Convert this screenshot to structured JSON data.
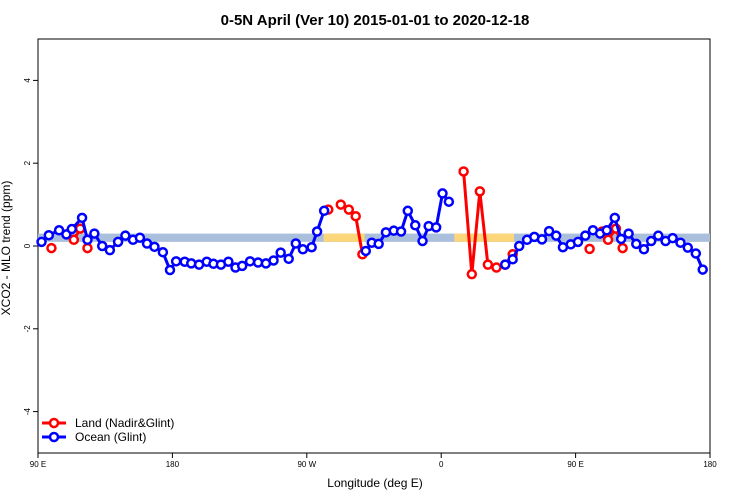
{
  "chart_data": {
    "type": "line",
    "title": "0-5N April (Ver 10)   2015-01-01 to 2020-12-18",
    "xlabel": "Longitude (deg E)",
    "ylabel": "XCO2 - MLO trend (ppm)",
    "xlim": [
      0,
      360
    ],
    "ylim": [
      -5,
      5
    ],
    "xticks": [
      {
        "v": 0,
        "label": "90 E"
      },
      {
        "v": 72,
        "label": "180"
      },
      {
        "v": 144,
        "label": "90 W"
      },
      {
        "v": 216,
        "label": "0"
      },
      {
        "v": 288,
        "label": "90 E"
      },
      {
        "v": 360,
        "label": "180"
      }
    ],
    "yticks": [
      -4,
      -2,
      0,
      2,
      4
    ],
    "grid": false,
    "legend_position": "bottom-left",
    "band": {
      "y_low": 0.1,
      "y_high": 0.3,
      "color": "#aabfdb",
      "land_color": "#fbd67a",
      "land_ranges": [
        [
          153,
          175
        ],
        [
          223,
          255
        ]
      ]
    },
    "series": [
      {
        "name": "Land (Nadir&Glint)",
        "color": "#ff0000",
        "segments": [
          [
            [
              7.2,
              -0.05
            ]
          ],
          [
            [
              19.2,
              0.15
            ],
            [
              22.6,
              0.42
            ]
          ],
          [
            [
              26.5,
              -0.05
            ]
          ],
          [
            [
              155.5,
              0.88
            ]
          ],
          [
            [
              162.2,
              1.0
            ],
            [
              166.5,
              0.88
            ],
            [
              170.2,
              0.72
            ],
            [
              173.8,
              -0.2
            ]
          ],
          [
            [
              228.0,
              1.8
            ],
            [
              232.4,
              -0.68
            ],
            [
              236.7,
              1.32
            ],
            [
              241.0,
              -0.45
            ],
            [
              245.6,
              -0.52
            ],
            [
              250.3,
              -0.45
            ],
            [
              254.3,
              -0.2
            ]
          ],
          [
            [
              295.5,
              -0.07
            ]
          ],
          [
            [
              302.3,
              0.35
            ]
          ],
          [
            [
              305.4,
              0.15
            ],
            [
              309.6,
              0.42
            ],
            [
              313.2,
              -0.05
            ]
          ]
        ]
      },
      {
        "name": "Ocean (Glint)",
        "color": "#0000ff",
        "segments": [
          [
            [
              1.9,
              0.1
            ],
            [
              5.8,
              0.26
            ],
            [
              11.3,
              0.38
            ],
            [
              15.2,
              0.28
            ],
            [
              18.1,
              0.41
            ],
            [
              23.6,
              0.68
            ],
            [
              26.5,
              0.15
            ],
            [
              30.2,
              0.3
            ],
            [
              34.4,
              0.0
            ],
            [
              38.5,
              -0.1
            ],
            [
              42.9,
              0.1
            ],
            [
              46.8,
              0.25
            ],
            [
              50.9,
              0.15
            ],
            [
              54.6,
              0.2
            ],
            [
              58.4,
              0.06
            ],
            [
              62.4,
              -0.02
            ],
            [
              66.9,
              -0.15
            ],
            [
              70.7,
              -0.58
            ],
            [
              74.0,
              -0.37
            ],
            [
              78.6,
              -0.38
            ],
            [
              82.1,
              -0.42
            ],
            [
              86.3,
              -0.45
            ],
            [
              90.4,
              -0.38
            ],
            [
              94.0,
              -0.43
            ],
            [
              98.0,
              -0.45
            ],
            [
              102.0,
              -0.38
            ],
            [
              105.8,
              -0.52
            ],
            [
              109.4,
              -0.48
            ],
            [
              113.6,
              -0.37
            ],
            [
              117.9,
              -0.4
            ],
            [
              122.1,
              -0.42
            ],
            [
              126.2,
              -0.35
            ],
            [
              130.0,
              -0.16
            ],
            [
              134.3,
              -0.31
            ],
            [
              138.1,
              0.06
            ],
            [
              141.9,
              -0.08
            ],
            [
              146.6,
              -0.03
            ],
            [
              149.5,
              0.35
            ],
            [
              153.3,
              0.85
            ]
          ],
          [
            [
              175.6,
              -0.12
            ],
            [
              178.8,
              0.08
            ],
            [
              182.5,
              0.05
            ],
            [
              186.4,
              0.33
            ],
            [
              190.6,
              0.37
            ],
            [
              194.5,
              0.35
            ],
            [
              198.1,
              0.85
            ],
            [
              202.1,
              0.5
            ],
            [
              206.0,
              0.12
            ],
            [
              209.3,
              0.48
            ],
            [
              213.3,
              0.45
            ],
            [
              216.7,
              1.27
            ],
            [
              220.1,
              1.07
            ]
          ],
          [
            [
              250.3,
              -0.45
            ],
            [
              254.3,
              -0.32
            ],
            [
              257.8,
              0.0
            ],
            [
              262.0,
              0.15
            ],
            [
              265.9,
              0.22
            ],
            [
              270.0,
              0.16
            ],
            [
              273.8,
              0.36
            ],
            [
              277.6,
              0.25
            ],
            [
              281.2,
              -0.03
            ],
            [
              285.4,
              0.04
            ],
            [
              289.3,
              0.1
            ],
            [
              293.2,
              0.25
            ],
            [
              297.3,
              0.38
            ],
            [
              301.1,
              0.3
            ],
            [
              304.7,
              0.38
            ],
            [
              309.0,
              0.68
            ],
            [
              312.4,
              0.17
            ],
            [
              316.4,
              0.3
            ],
            [
              320.5,
              0.05
            ],
            [
              324.6,
              -0.08
            ],
            [
              328.5,
              0.12
            ],
            [
              332.3,
              0.25
            ],
            [
              336.2,
              0.12
            ],
            [
              340.0,
              0.19
            ],
            [
              344.2,
              0.08
            ],
            [
              348.1,
              -0.04
            ],
            [
              352.4,
              -0.18
            ],
            [
              356.1,
              -0.57
            ]
          ]
        ]
      }
    ]
  }
}
